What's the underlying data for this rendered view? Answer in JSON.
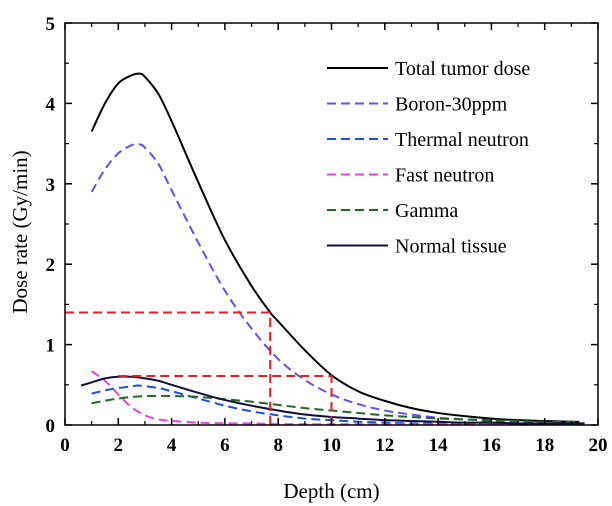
{
  "chart_data": {
    "type": "line",
    "title": "",
    "xlabel": "Depth (cm)",
    "ylabel": "Dose rate (Gy/min)",
    "xlim": [
      0,
      20
    ],
    "ylim": [
      0,
      5
    ],
    "x_ticks": [
      0,
      2,
      4,
      6,
      8,
      10,
      12,
      14,
      16,
      18,
      20
    ],
    "y_ticks": [
      0,
      1,
      2,
      3,
      4,
      5
    ],
    "grid": false,
    "legend_position": "top-right",
    "series": [
      {
        "name": "Total tumor dose",
        "color": "#000000",
        "style": "solid",
        "x": [
          1.0,
          1.5,
          2.0,
          2.5,
          2.8,
          3.0,
          3.5,
          4.0,
          5.0,
          6.0,
          7.0,
          7.7,
          8.0,
          9.0,
          10.0,
          11.0,
          12.0,
          13.0,
          14.0,
          15.0,
          16.0,
          17.0,
          18.0,
          19.0,
          19.3
        ],
        "y": [
          3.65,
          4.0,
          4.25,
          4.35,
          4.37,
          4.33,
          4.12,
          3.78,
          3.02,
          2.3,
          1.73,
          1.4,
          1.29,
          0.93,
          0.62,
          0.42,
          0.3,
          0.21,
          0.15,
          0.11,
          0.08,
          0.06,
          0.05,
          0.04,
          0.04
        ]
      },
      {
        "name": "Boron-30ppm",
        "color": "#6a4cf0",
        "style": "dashed",
        "x": [
          1.0,
          1.5,
          2.0,
          2.5,
          2.8,
          3.0,
          3.5,
          4.0,
          5.0,
          6.0,
          7.0,
          8.0,
          9.0,
          10.0,
          11.0,
          12.0,
          13.0,
          14.0,
          15.0,
          16.0,
          17.0,
          18.0,
          19.0,
          19.3
        ],
        "y": [
          2.9,
          3.18,
          3.38,
          3.48,
          3.49,
          3.45,
          3.25,
          2.92,
          2.27,
          1.67,
          1.2,
          0.82,
          0.56,
          0.38,
          0.26,
          0.18,
          0.13,
          0.09,
          0.07,
          0.05,
          0.04,
          0.03,
          0.03,
          0.03
        ]
      },
      {
        "name": "Thermal neutron",
        "color": "#1a4fe0",
        "style": "dashed",
        "x": [
          1.0,
          1.5,
          2.0,
          2.5,
          2.8,
          3.5,
          4.0,
          5.0,
          6.0,
          7.0,
          8.0,
          9.0,
          10.0,
          11.0,
          12.0,
          13.0,
          14.0,
          15.0,
          16.0,
          17.0,
          18.0,
          19.0
        ],
        "y": [
          0.39,
          0.43,
          0.46,
          0.48,
          0.49,
          0.46,
          0.42,
          0.33,
          0.24,
          0.17,
          0.12,
          0.08,
          0.06,
          0.04,
          0.03,
          0.02,
          0.02,
          0.01,
          0.01,
          0.01,
          0.01,
          0.01
        ]
      },
      {
        "name": "Fast neutron",
        "color": "#ee3fe8",
        "style": "dashed",
        "x": [
          1.0,
          1.5,
          2.0,
          2.5,
          3.0,
          3.5,
          4.0,
          5.0,
          6.0,
          7.0,
          8.0,
          10.0,
          12.0,
          14.0,
          16.0,
          18.0,
          19.0
        ],
        "y": [
          0.67,
          0.55,
          0.38,
          0.22,
          0.12,
          0.07,
          0.05,
          0.03,
          0.02,
          0.02,
          0.01,
          0.01,
          0.01,
          0.01,
          0.01,
          0.01,
          0.01
        ]
      },
      {
        "name": "Gamma",
        "color": "#1d6b1d",
        "style": "dashed",
        "x": [
          1.0,
          2.0,
          3.0,
          4.0,
          5.0,
          6.0,
          7.0,
          8.0,
          9.0,
          10.0,
          11.0,
          12.0,
          13.0,
          14.0,
          15.0,
          16.0,
          17.0,
          18.0,
          19.0,
          19.3
        ],
        "y": [
          0.27,
          0.33,
          0.36,
          0.36,
          0.35,
          0.32,
          0.29,
          0.25,
          0.21,
          0.18,
          0.15,
          0.12,
          0.1,
          0.08,
          0.07,
          0.06,
          0.05,
          0.04,
          0.04,
          0.04
        ]
      },
      {
        "name": "Normal tissue",
        "color": "#101040",
        "style": "solid",
        "x": [
          0.6,
          1.0,
          1.5,
          2.0,
          2.5,
          3.0,
          3.5,
          4.0,
          5.0,
          6.0,
          7.0,
          8.0,
          9.0,
          10.0,
          11.0,
          12.0,
          13.0,
          14.0,
          15.0,
          16.0,
          17.0,
          18.0,
          19.0,
          19.5
        ],
        "y": [
          0.49,
          0.53,
          0.58,
          0.6,
          0.6,
          0.58,
          0.55,
          0.5,
          0.4,
          0.31,
          0.24,
          0.18,
          0.13,
          0.1,
          0.08,
          0.06,
          0.05,
          0.04,
          0.03,
          0.03,
          0.02,
          0.02,
          0.02,
          0.02
        ]
      }
    ],
    "reference_lines": [
      {
        "color": "#e52020",
        "style": "dashed",
        "points": [
          [
            0,
            1.4
          ],
          [
            7.7,
            1.4
          ]
        ]
      },
      {
        "color": "#e52020",
        "style": "dashed",
        "points": [
          [
            7.7,
            0
          ],
          [
            7.7,
            1.4
          ]
        ]
      },
      {
        "color": "#e52020",
        "style": "dashed",
        "points": [
          [
            2,
            0.61
          ],
          [
            10,
            0.61
          ]
        ]
      },
      {
        "color": "#e52020",
        "style": "dashed",
        "points": [
          [
            10,
            0
          ],
          [
            10,
            0.62
          ]
        ]
      }
    ]
  }
}
